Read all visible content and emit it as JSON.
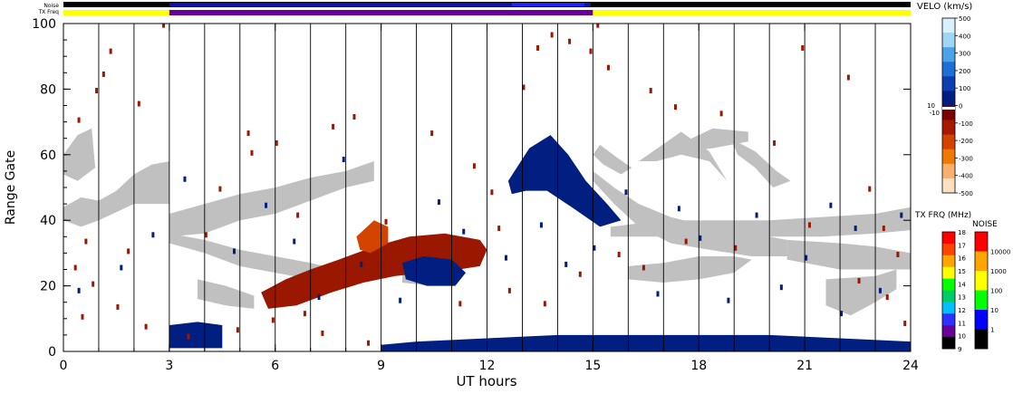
{
  "chart_data": {
    "type": "heatmap",
    "xlabel": "UT hours",
    "ylabel": "Range Gate",
    "xlim": [
      0,
      24
    ],
    "ylim": [
      0,
      100
    ],
    "x_ticks": [
      "0",
      "3",
      "6",
      "9",
      "12",
      "15",
      "18",
      "21",
      "24"
    ],
    "y_ticks": [
      "0",
      "20",
      "40",
      "60",
      "80",
      "100"
    ],
    "scan_interval_hours": 1,
    "top_bars": {
      "noise_label": "Noise",
      "txfreq_label": "TX Freq",
      "segments": [
        {
          "start": 0,
          "end": 3,
          "color": "#ffff00"
        },
        {
          "start": 3,
          "end": 15,
          "color": "#660099"
        },
        {
          "start": 15,
          "end": 24,
          "color": "#ffff00"
        }
      ]
    },
    "velo_scale": {
      "title": "VELO (km/s)",
      "ticks": [
        "500",
        "400",
        "300",
        "200",
        "100",
        "0",
        "-100",
        "-200",
        "-300",
        "-400",
        "-500"
      ],
      "near_zero": [
        "10",
        "-10"
      ],
      "colors": [
        "#d9f0ff",
        "#9fd6f5",
        "#4aa3e8",
        "#1f6fd6",
        "#0b3fb0",
        "#001f80",
        "#7a0000",
        "#a81a00",
        "#d24400",
        "#ef7a00",
        "#f7b070",
        "#fde0c0"
      ]
    },
    "txfreq_scale": {
      "title": "TX FRQ (MHz)",
      "ticks": [
        "18",
        "17",
        "16",
        "15",
        "14",
        "13",
        "12",
        "11",
        "10",
        "9"
      ],
      "colors": [
        "#ff0000",
        "#ff4400",
        "#ffa500",
        "#ffff00",
        "#00ff00",
        "#00cc66",
        "#00c0ff",
        "#3030ff",
        "#660099",
        "#000000"
      ]
    },
    "noise_scale": {
      "title": "NOISE",
      "ticks": [
        "10000",
        "1000",
        "100",
        "10",
        "1"
      ],
      "colors": [
        "#ff0000",
        "#ffa500",
        "#ffff00",
        "#00ff00",
        "#0000ff",
        "#000000"
      ]
    },
    "regions": [
      {
        "type": "ground_scatter",
        "color": "#c0c0c0",
        "points": [
          [
            0,
            44
          ],
          [
            0.5,
            47
          ],
          [
            1,
            46
          ],
          [
            1.5,
            49
          ],
          [
            2,
            54
          ],
          [
            2.5,
            57
          ],
          [
            3,
            58
          ],
          [
            3,
            45
          ],
          [
            2,
            45
          ],
          [
            1,
            40
          ],
          [
            0.5,
            38
          ],
          [
            0,
            40
          ]
        ]
      },
      {
        "type": "ground_scatter",
        "color": "#c0c0c0",
        "points": [
          [
            0,
            60
          ],
          [
            0.4,
            66
          ],
          [
            0.8,
            68
          ],
          [
            0.9,
            56
          ],
          [
            0.4,
            52
          ],
          [
            0,
            54
          ]
        ]
      },
      {
        "type": "ground_scatter",
        "color": "#c0c0c0",
        "points": [
          [
            3,
            42
          ],
          [
            4,
            45
          ],
          [
            5,
            48
          ],
          [
            6,
            50
          ],
          [
            7,
            53
          ],
          [
            8,
            55
          ],
          [
            8.8,
            58
          ],
          [
            8.8,
            52
          ],
          [
            8,
            50
          ],
          [
            7,
            46
          ],
          [
            6,
            42
          ],
          [
            5,
            40
          ],
          [
            4,
            36
          ],
          [
            3,
            35
          ]
        ]
      },
      {
        "type": "ground_scatter",
        "color": "#c0c0c0",
        "points": [
          [
            3,
            36
          ],
          [
            4,
            34
          ],
          [
            5,
            31
          ],
          [
            6,
            29
          ],
          [
            7,
            27
          ],
          [
            7.8,
            25
          ],
          [
            7.8,
            22
          ],
          [
            7,
            22
          ],
          [
            6,
            24
          ],
          [
            5,
            26
          ],
          [
            4,
            30
          ],
          [
            3,
            33
          ]
        ]
      },
      {
        "type": "ground_scatter",
        "color": "#c0c0c0",
        "points": [
          [
            3.8,
            22
          ],
          [
            4.6,
            20
          ],
          [
            5.4,
            17
          ],
          [
            5.4,
            13
          ],
          [
            4.6,
            14
          ],
          [
            3.8,
            16
          ]
        ]
      },
      {
        "type": "ground_scatter",
        "color": "#c0c0c0",
        "points": [
          [
            15,
            52
          ],
          [
            15.6,
            45
          ],
          [
            16.3,
            38
          ],
          [
            17.2,
            33
          ],
          [
            18.3,
            31
          ],
          [
            19.5,
            29
          ],
          [
            20.5,
            29
          ],
          [
            20.5,
            34
          ],
          [
            19.5,
            36
          ],
          [
            18.3,
            38
          ],
          [
            17.2,
            41
          ],
          [
            16.3,
            45
          ],
          [
            15.6,
            50
          ],
          [
            15,
            55
          ]
        ]
      },
      {
        "type": "ground_scatter",
        "color": "#c0c0c0",
        "points": [
          [
            15.5,
            38
          ],
          [
            17,
            40
          ],
          [
            18.5,
            40
          ],
          [
            20,
            40
          ],
          [
            21.5,
            41
          ],
          [
            23,
            42
          ],
          [
            24,
            44
          ],
          [
            24,
            37
          ],
          [
            23,
            36
          ],
          [
            21.5,
            35
          ],
          [
            20,
            35
          ],
          [
            18.5,
            35
          ],
          [
            17,
            35
          ],
          [
            15.5,
            35
          ]
        ]
      },
      {
        "type": "ground_scatter",
        "color": "#c0c0c0",
        "points": [
          [
            20.5,
            34
          ],
          [
            22,
            33
          ],
          [
            23,
            32
          ],
          [
            24,
            30
          ],
          [
            24,
            25
          ],
          [
            23,
            25
          ],
          [
            22,
            25
          ],
          [
            20.5,
            28
          ]
        ]
      },
      {
        "type": "ground_scatter",
        "color": "#c0c0c0",
        "points": [
          [
            16,
            22
          ],
          [
            17,
            21
          ],
          [
            18,
            22
          ],
          [
            19,
            24
          ],
          [
            19.5,
            28
          ],
          [
            19,
            29
          ],
          [
            18,
            29
          ],
          [
            17,
            27
          ],
          [
            16,
            26
          ]
        ]
      },
      {
        "type": "ground_scatter",
        "color": "#c0c0c0",
        "points": [
          [
            21.6,
            22
          ],
          [
            23,
            23
          ],
          [
            23.6,
            25
          ],
          [
            23.6,
            19
          ],
          [
            23,
            15
          ],
          [
            22.3,
            11
          ],
          [
            21.6,
            14
          ]
        ]
      },
      {
        "type": "ground_scatter",
        "color": "#c0c0c0",
        "points": [
          [
            16.3,
            58
          ],
          [
            17.5,
            67
          ],
          [
            18.3,
            61
          ],
          [
            18.8,
            52
          ],
          [
            18.3,
            58
          ],
          [
            17.5,
            60
          ],
          [
            16.8,
            58
          ]
        ]
      },
      {
        "type": "ground_scatter",
        "color": "#c0c0c0",
        "points": [
          [
            18.9,
            65
          ],
          [
            19.6,
            61
          ],
          [
            20.2,
            55
          ],
          [
            20.6,
            52
          ],
          [
            20.1,
            50
          ],
          [
            19.6,
            56
          ],
          [
            19.1,
            60
          ]
        ]
      },
      {
        "type": "ground_scatter",
        "color": "#c0c0c0",
        "points": [
          [
            15.2,
            63
          ],
          [
            15.7,
            59
          ],
          [
            16.1,
            56
          ],
          [
            15.8,
            54
          ],
          [
            15.3,
            57
          ],
          [
            15,
            60
          ]
        ]
      },
      {
        "type": "ground_scatter",
        "color": "#c0c0c0",
        "points": [
          [
            17.6,
            64
          ],
          [
            18.4,
            68
          ],
          [
            19.4,
            67
          ],
          [
            19.4,
            64
          ],
          [
            18.4,
            62
          ],
          [
            17.6,
            61
          ]
        ]
      },
      {
        "type": "ground_scatter",
        "color": "#c0c0c0",
        "points": [
          [
            9.6,
            27
          ],
          [
            10.4,
            29
          ],
          [
            11.2,
            28
          ],
          [
            11.2,
            22
          ],
          [
            10.4,
            20
          ],
          [
            9.6,
            21
          ]
        ]
      },
      {
        "type": "negative_velocity",
        "color": "#9a1800",
        "points": [
          [
            5.6,
            18
          ],
          [
            6.3,
            22
          ],
          [
            7,
            25
          ],
          [
            7.8,
            28
          ],
          [
            8.8,
            32
          ],
          [
            9.8,
            35
          ],
          [
            10.8,
            36
          ],
          [
            11.8,
            34
          ],
          [
            12,
            31
          ],
          [
            11.8,
            26
          ],
          [
            11.2,
            25
          ],
          [
            10.3,
            24
          ],
          [
            9.4,
            23
          ],
          [
            8.5,
            21
          ],
          [
            7.6,
            18
          ],
          [
            6.6,
            14
          ],
          [
            5.8,
            13
          ]
        ]
      },
      {
        "type": "negative_velocity",
        "color": "#d24400",
        "points": [
          [
            8.3,
            35
          ],
          [
            8.8,
            40
          ],
          [
            9.2,
            38
          ],
          [
            9.2,
            33
          ],
          [
            8.7,
            30
          ],
          [
            8.4,
            31
          ]
        ]
      },
      {
        "type": "positive_velocity",
        "color": "#001f80",
        "points": [
          [
            9.6,
            27
          ],
          [
            10.2,
            29
          ],
          [
            11,
            28
          ],
          [
            11.4,
            24
          ],
          [
            11.1,
            20
          ],
          [
            10.3,
            20
          ],
          [
            9.7,
            22
          ]
        ]
      },
      {
        "type": "positive_velocity",
        "color": "#001f80",
        "points": [
          [
            12.6,
            52
          ],
          [
            13.2,
            62
          ],
          [
            13.8,
            66
          ],
          [
            14.3,
            60
          ],
          [
            14.8,
            52
          ],
          [
            15.4,
            45
          ],
          [
            15.8,
            40
          ],
          [
            15.2,
            38
          ],
          [
            14.4,
            44
          ],
          [
            13.7,
            49
          ],
          [
            13.1,
            49
          ],
          [
            12.7,
            48
          ]
        ]
      },
      {
        "type": "positive_velocity",
        "color": "#001f80",
        "points": [
          [
            9,
            0
          ],
          [
            24,
            0
          ],
          [
            24,
            3
          ],
          [
            22,
            4
          ],
          [
            20,
            5
          ],
          [
            18,
            5
          ],
          [
            16,
            5
          ],
          [
            14,
            5
          ],
          [
            12,
            4
          ],
          [
            10,
            3
          ],
          [
            9,
            2
          ]
        ]
      },
      {
        "type": "positive_velocity",
        "color": "#001f80",
        "points": [
          [
            3,
            1
          ],
          [
            4.5,
            1
          ],
          [
            4.5,
            8
          ],
          [
            3.8,
            9
          ],
          [
            3,
            8
          ]
        ]
      }
    ],
    "negative_specks": [
      [
        0.9,
        79
      ],
      [
        1.1,
        84
      ],
      [
        1.3,
        91
      ],
      [
        0.4,
        70
      ],
      [
        2.1,
        75
      ],
      [
        2.8,
        99
      ],
      [
        1.8,
        30
      ],
      [
        0.6,
        33
      ],
      [
        0.3,
        25
      ],
      [
        0.8,
        20
      ],
      [
        4.0,
        35
      ],
      [
        4.4,
        49
      ],
      [
        5.2,
        66
      ],
      [
        5.3,
        60
      ],
      [
        6.0,
        63
      ],
      [
        6.6,
        41
      ],
      [
        7.6,
        68
      ],
      [
        8.2,
        71
      ],
      [
        9.1,
        39
      ],
      [
        10.4,
        66
      ],
      [
        11.6,
        56
      ],
      [
        12.1,
        48
      ],
      [
        12.3,
        37
      ],
      [
        13.0,
        80
      ],
      [
        13.4,
        92
      ],
      [
        13.8,
        96
      ],
      [
        14.3,
        94
      ],
      [
        14.9,
        91
      ],
      [
        15.1,
        99
      ],
      [
        15.4,
        86
      ],
      [
        16.6,
        79
      ],
      [
        17.3,
        74
      ],
      [
        18.6,
        72
      ],
      [
        20.1,
        63
      ],
      [
        20.9,
        92
      ],
      [
        22.2,
        83
      ],
      [
        22.8,
        49
      ],
      [
        23.2,
        37
      ],
      [
        23.6,
        29
      ],
      [
        23.3,
        16
      ],
      [
        0.5,
        10
      ],
      [
        1.5,
        13
      ],
      [
        2.3,
        7
      ],
      [
        3.5,
        4
      ],
      [
        4.9,
        6
      ],
      [
        5.9,
        9
      ],
      [
        6.8,
        11
      ],
      [
        7.3,
        5
      ],
      [
        8.6,
        2
      ],
      [
        11.2,
        14
      ],
      [
        12.6,
        18
      ],
      [
        13.6,
        14
      ],
      [
        14.6,
        23
      ],
      [
        15.7,
        29
      ],
      [
        16.4,
        25
      ],
      [
        17.6,
        33
      ],
      [
        19.0,
        31
      ],
      [
        21.1,
        38
      ],
      [
        22.5,
        21
      ],
      [
        23.8,
        8
      ]
    ],
    "positive_specks": [
      [
        0.4,
        18
      ],
      [
        1.6,
        25
      ],
      [
        2.5,
        35
      ],
      [
        3.4,
        52
      ],
      [
        4.8,
        30
      ],
      [
        5.7,
        44
      ],
      [
        6.5,
        33
      ],
      [
        7.2,
        16
      ],
      [
        7.9,
        58
      ],
      [
        8.4,
        26
      ],
      [
        9.5,
        15
      ],
      [
        10.6,
        45
      ],
      [
        11.3,
        36
      ],
      [
        12.5,
        28
      ],
      [
        13.5,
        38
      ],
      [
        14.2,
        26
      ],
      [
        15.0,
        31
      ],
      [
        15.9,
        48
      ],
      [
        16.8,
        17
      ],
      [
        17.4,
        43
      ],
      [
        18.0,
        34
      ],
      [
        18.8,
        15
      ],
      [
        19.6,
        41
      ],
      [
        20.3,
        19
      ],
      [
        21.0,
        28
      ],
      [
        21.7,
        44
      ],
      [
        22.4,
        37
      ],
      [
        23.1,
        18
      ],
      [
        23.7,
        41
      ],
      [
        22.0,
        11
      ]
    ]
  }
}
